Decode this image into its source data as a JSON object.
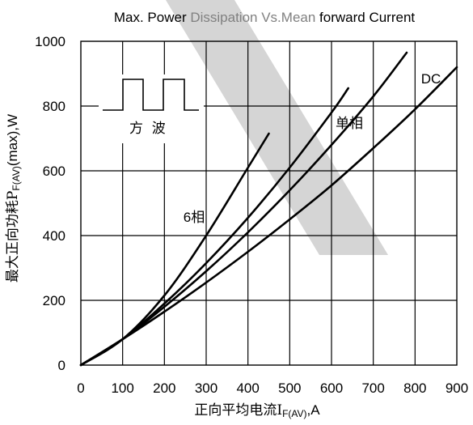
{
  "chart_data": {
    "type": "line",
    "title_parts": [
      {
        "text": "Max. Power ",
        "color": "#000000"
      },
      {
        "text": "Dissipation Vs.Mean",
        "color": "#808080"
      },
      {
        "text": " forward Current",
        "color": "#000000"
      }
    ],
    "ylabel_main": "最大正向功耗P",
    "ylabel_sub": "F(AV)",
    "ylabel_tail": "(max),W",
    "xlabel_main": "正向平均电流I",
    "xlabel_sub": "F(AV)",
    "xlabel_tail": ",A",
    "xlim": [
      0,
      900
    ],
    "ylim": [
      0,
      1000
    ],
    "x_ticks": [
      0,
      100,
      200,
      300,
      400,
      500,
      600,
      700,
      800,
      900
    ],
    "y_ticks": [
      0,
      200,
      400,
      600,
      800,
      1000
    ],
    "grid": true,
    "series": [
      {
        "name": "6相",
        "x": [
          0,
          100,
          200,
          300,
          400,
          450
        ],
        "y": [
          0,
          80,
          215,
          400,
          610,
          715
        ]
      },
      {
        "name": "",
        "x": [
          0,
          100,
          200,
          300,
          400,
          500,
          600,
          640
        ],
        "y": [
          0,
          80,
          190,
          315,
          455,
          610,
          780,
          855
        ]
      },
      {
        "name": "单相",
        "x": [
          0,
          100,
          200,
          300,
          400,
          500,
          600,
          700,
          780
        ],
        "y": [
          0,
          80,
          180,
          290,
          410,
          540,
          680,
          830,
          965
        ]
      },
      {
        "name": "DC",
        "x": [
          0,
          100,
          200,
          300,
          400,
          500,
          600,
          700,
          800,
          900
        ],
        "y": [
          0,
          80,
          165,
          255,
          350,
          450,
          555,
          670,
          790,
          920
        ]
      }
    ],
    "inset_label": "方  波"
  }
}
